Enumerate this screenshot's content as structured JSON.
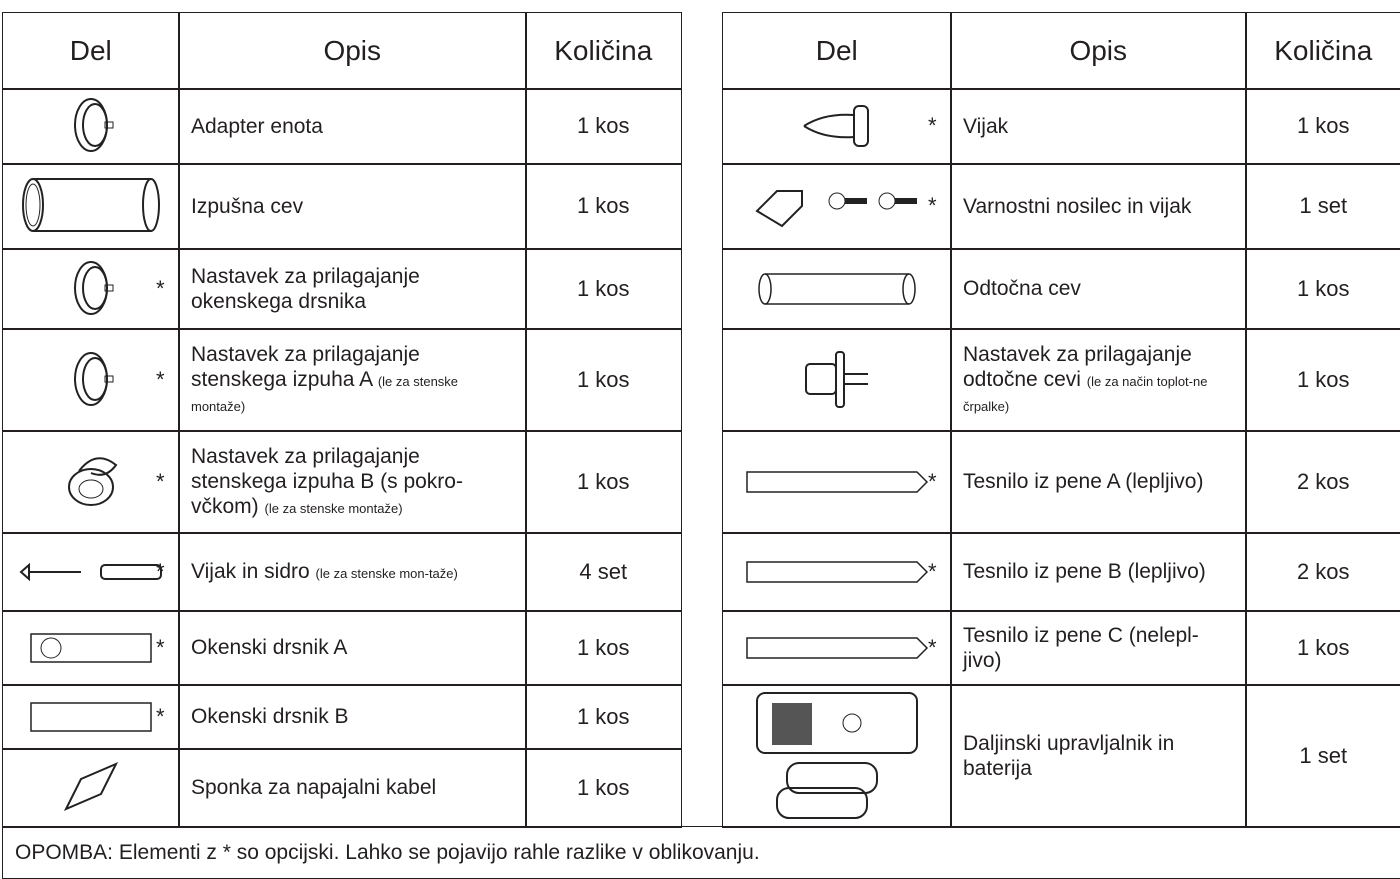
{
  "left_table": {
    "header": [
      "Del",
      "Opis",
      "Količina"
    ],
    "rows": [
      {
        "description": "Adapter enota",
        "quantity": "1 kos"
      },
      {
        "description": "Izpušna cev",
        "quantity": "1 kos"
      },
      {
        "mark": "*",
        "description": "Nastavek za prilagajanje okenskega drsnika",
        "quantity": "1 kos"
      },
      {
        "mark": "*",
        "description": "Nastavek za prilagajanje stenskega izpuha A",
        "note": "(le za stenske montaže)",
        "quantity": "1 kos"
      },
      {
        "mark": "*",
        "description": "Nastavek za prilagajanje stenskega izpuha B (s pokro-včkom)",
        "note": "(le za stenske montaže)",
        "quantity": "1 kos"
      },
      {
        "mark": "*",
        "description": "Vijak in sidro",
        "note": "(le za stenske mon-taže)",
        "quantity": "4 set"
      },
      {
        "mark": "*",
        "description": "Okenski drsnik A",
        "quantity": "1 kos"
      },
      {
        "mark": "*",
        "description": "Okenski drsnik B",
        "quantity": "1 kos"
      },
      {
        "description": "Sponka za napajalni kabel",
        "quantity": "1 kos"
      }
    ]
  },
  "right_table": {
    "header": [
      "Del",
      "Opis",
      "Količina"
    ],
    "rows": [
      {
        "mark": "*",
        "description": "Vijak",
        "quantity": "1 kos"
      },
      {
        "mark": "*",
        "description": "Varnostni nosilec in vijak",
        "quantity": "1 set"
      },
      {
        "description": "Odtočna cev",
        "quantity": "1 kos"
      },
      {
        "description": "Nastavek za prilagajanje odtočne cevi",
        "note": "(le za način toplot-ne črpalke)",
        "quantity": "1 kos"
      },
      {
        "mark": "*",
        "description": "Tesnilo iz pene A (lepljivo)",
        "quantity": "2 kos"
      },
      {
        "mark": "*",
        "description": "Tesnilo iz pene B (lepljivo)",
        "quantity": "2 kos"
      },
      {
        "mark": "*",
        "description": "Tesnilo iz pene C (nelepl-jivo)",
        "quantity": "1 kos"
      },
      {
        "description": "Daljinski upravljalnik in baterija",
        "quantity": "1 set"
      }
    ]
  },
  "note": "OPOMBA: Elementi z * so opcijski. Lahko se pojavijo rahle razlike v oblikovanju."
}
